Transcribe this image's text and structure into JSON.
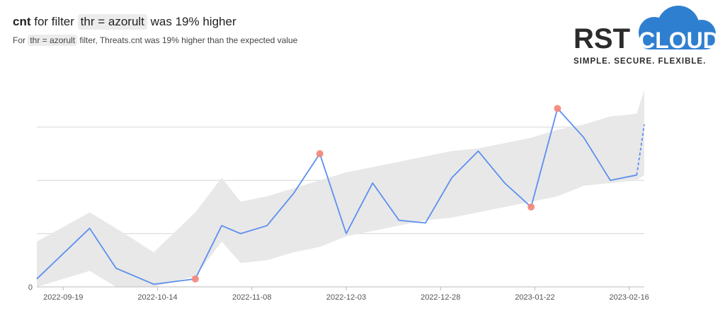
{
  "header": {
    "title_metric": "cnt",
    "title_pre": "for filter",
    "title_filter": "thr = azorult",
    "title_post": "was 19% higher",
    "subtitle_pre": "For",
    "subtitle_filter": "thr = azorult",
    "subtitle_post": "filter, Threats.cnt was 19% higher than the expected value"
  },
  "logo": {
    "word1": "RST",
    "word2": "CLOUD",
    "tagline": "SIMPLE. SECURE. FLEXIBLE.",
    "colors": {
      "text": "#2b2b2b",
      "cloud": "#2f7fd0",
      "cloud_text": "#ffffff"
    }
  },
  "chart_data": {
    "type": "line",
    "x": [
      "2022-09-12",
      "2022-09-26",
      "2022-10-03",
      "2022-10-13",
      "2022-10-24",
      "2022-10-31",
      "2022-11-05",
      "2022-11-12",
      "2022-11-19",
      "2022-11-26",
      "2022-12-03",
      "2022-12-10",
      "2022-12-17",
      "2022-12-24",
      "2022-12-31",
      "2023-01-07",
      "2023-01-14",
      "2023-01-21",
      "2023-01-28",
      "2023-02-04",
      "2023-02-11",
      "2023-02-18",
      "2023-02-20"
    ],
    "series": [
      {
        "values": [
          0.3,
          2.2,
          0.7,
          0.1,
          0.3,
          2.3,
          2.0,
          2.3,
          3.5,
          5.0,
          2.0,
          3.9,
          2.5,
          2.4,
          4.1,
          5.1,
          3.9,
          3.0,
          6.7,
          5.6,
          4.0,
          4.2,
          6.1
        ],
        "color": "#5b8ff0"
      }
    ],
    "expected_band": {
      "color": "#e8e8e8",
      "upper": [
        1.7,
        2.8,
        2.2,
        1.3,
        2.8,
        4.1,
        3.2,
        3.4,
        3.7,
        4.0,
        4.3,
        4.5,
        4.7,
        4.9,
        5.1,
        5.2,
        5.4,
        5.6,
        5.9,
        6.1,
        6.4,
        6.5,
        7.4
      ],
      "lower": [
        0.0,
        0.6,
        0.0,
        0.0,
        0.4,
        1.7,
        0.9,
        1.0,
        1.3,
        1.5,
        1.9,
        2.1,
        2.3,
        2.5,
        2.6,
        2.8,
        3.0,
        3.2,
        3.4,
        3.8,
        3.9,
        4.0,
        4.2
      ]
    },
    "anomalies": {
      "indices": [
        4,
        9,
        17,
        18
      ],
      "color": "#f48a7d"
    },
    "xticks": [
      "2022-09-19",
      "2022-10-14",
      "2022-11-08",
      "2022-12-03",
      "2022-12-28",
      "2023-01-22",
      "2023-02-16"
    ],
    "yticks": [
      0
    ],
    "ylim": [
      0,
      7.8
    ],
    "gridlines_y": [
      2,
      4,
      6
    ],
    "grid": true
  }
}
